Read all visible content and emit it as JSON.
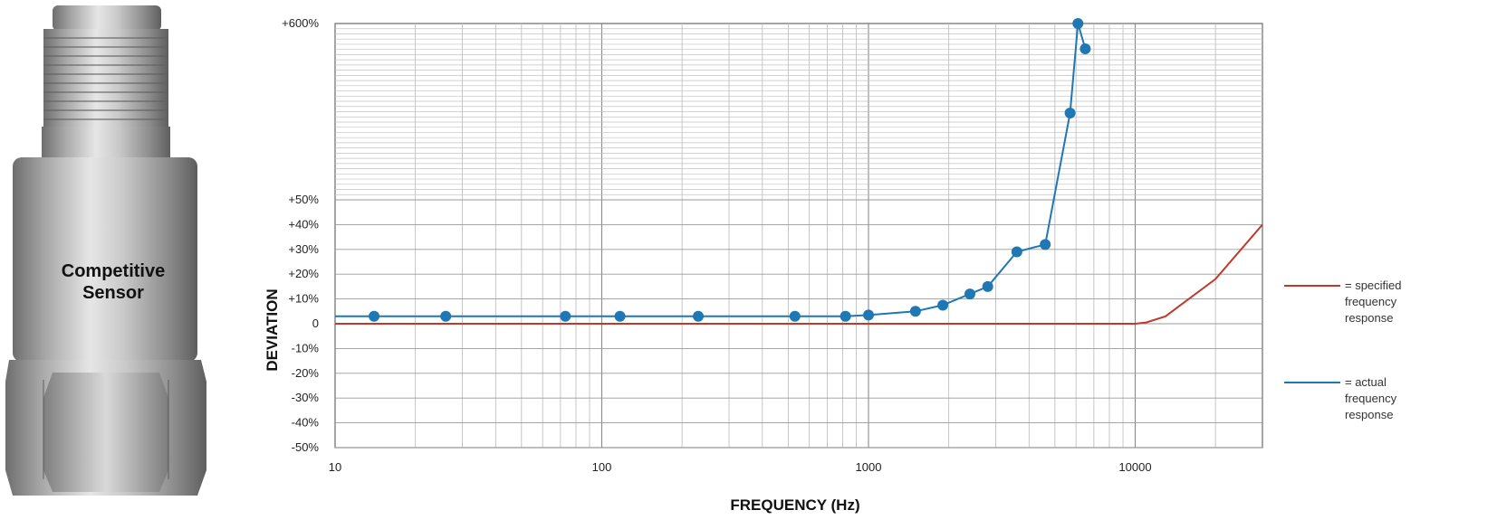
{
  "sensor_image": {
    "label_lines": [
      "Competitive",
      "Sensor"
    ]
  },
  "chart_data": {
    "type": "line",
    "xlabel": "FREQUENCY (Hz)",
    "ylabel": "DEVIATION",
    "x_scale": "log",
    "xlim": [
      10,
      30000
    ],
    "x_ticks": [
      {
        "value": 10,
        "label": "10"
      },
      {
        "value": 100,
        "label": "100"
      },
      {
        "value": 1000,
        "label": "1000"
      },
      {
        "value": 10000,
        "label": "10000"
      }
    ],
    "y_ticks": [
      "+600%",
      "+50%",
      "+40%",
      "+30%",
      "+20%",
      "+10%",
      "0",
      "-10%",
      "-20%",
      "-30%",
      "-40%",
      "-50%"
    ],
    "y_scale_note": "linear from -50% to +50%, compressed band from +50% to +600%",
    "grid": true,
    "series": [
      {
        "name": "= specified frequency response",
        "legend_lines": [
          "= specified",
          "frequency",
          "response"
        ],
        "color": "#c0392b",
        "markers": false,
        "x": [
          10,
          1000,
          10000,
          11000,
          13000,
          15000,
          20000,
          30000
        ],
        "y": [
          0,
          0,
          0,
          0.5,
          3,
          8,
          18,
          40
        ]
      },
      {
        "name": "= actual frequency response",
        "legend_lines": [
          "= actual",
          "frequency",
          "response"
        ],
        "color": "#1f77b4",
        "markers": true,
        "x": [
          10,
          14,
          26,
          73,
          117,
          230,
          530,
          820,
          1000,
          1500,
          1900,
          2400,
          2800,
          3600,
          4600,
          5700,
          6100,
          6500
        ],
        "y": [
          3,
          3,
          3,
          3,
          3,
          3,
          3,
          3,
          3.5,
          5,
          7.5,
          12,
          15,
          29,
          32,
          170,
          600,
          420
        ]
      }
    ],
    "legend_position": "right"
  }
}
